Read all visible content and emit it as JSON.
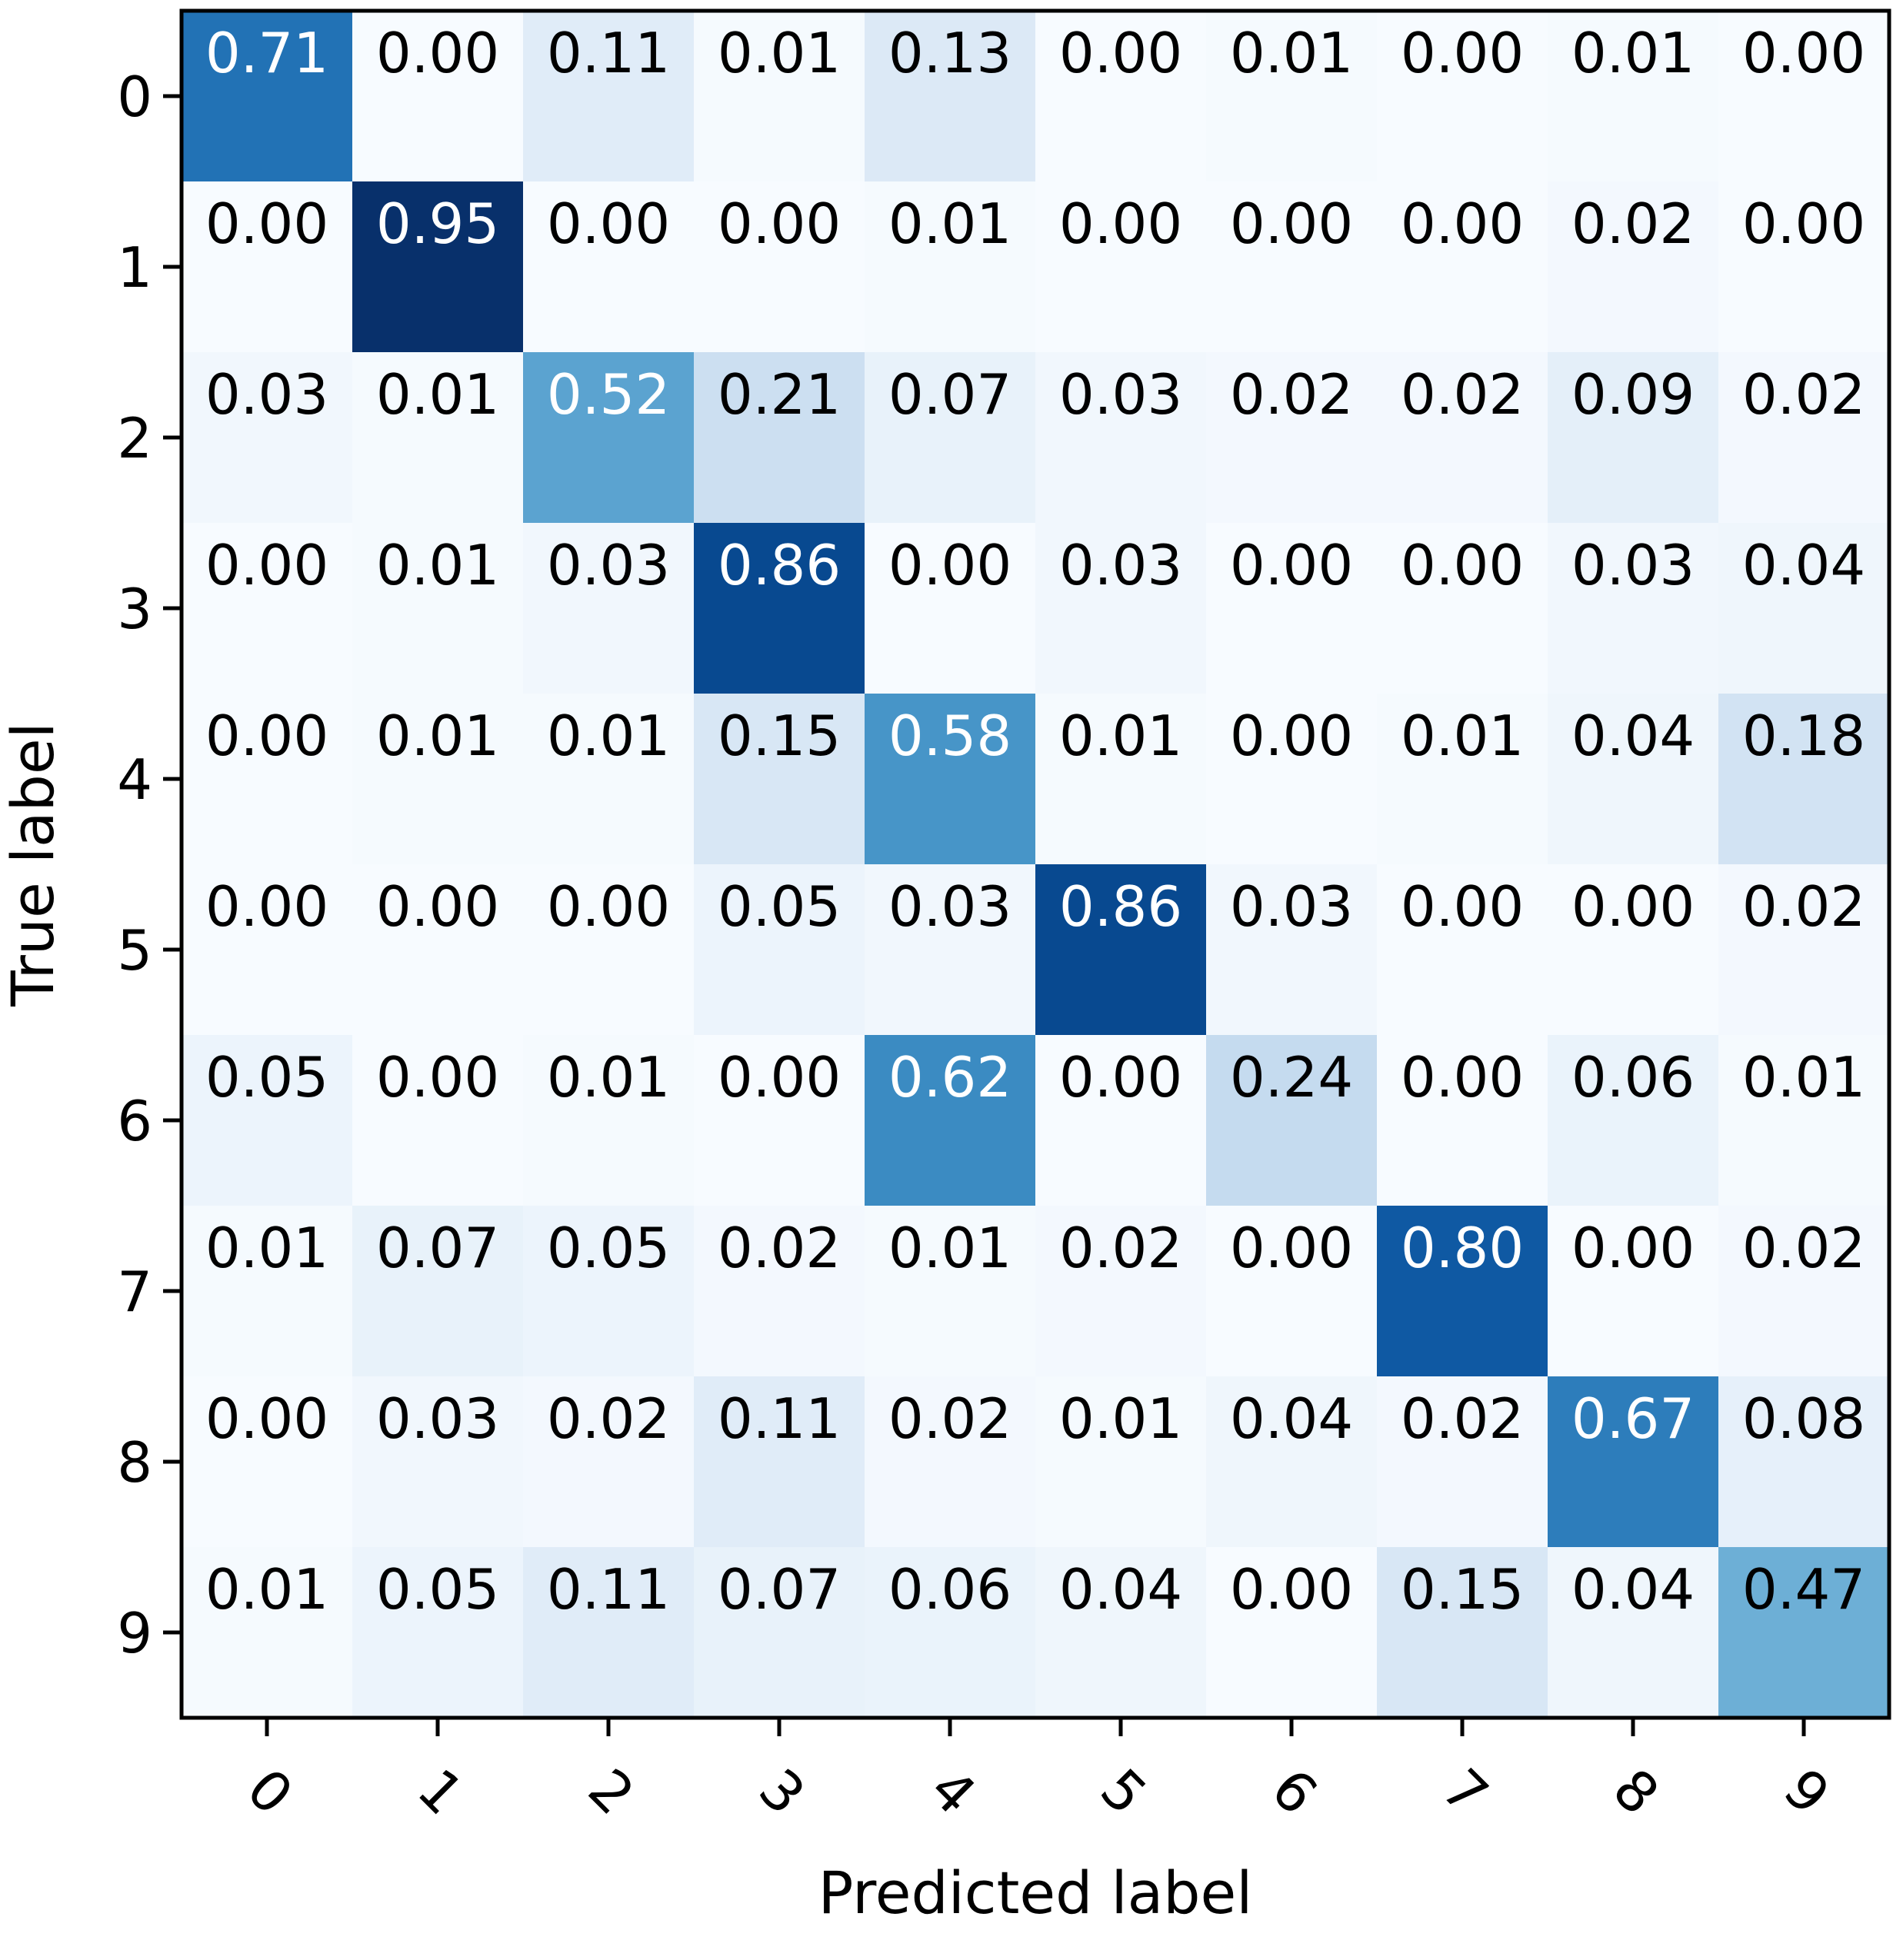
{
  "chart_data": {
    "type": "heatmap",
    "colormap": "Blues",
    "xlabel": "Predicted label",
    "ylabel": "True label",
    "x_tick_labels": [
      "0",
      "1",
      "2",
      "3",
      "4",
      "5",
      "6",
      "7",
      "8",
      "9"
    ],
    "y_tick_labels": [
      "0",
      "1",
      "2",
      "3",
      "4",
      "5",
      "6",
      "7",
      "8",
      "9"
    ],
    "value_range": [
      0,
      1
    ],
    "values": [
      [
        0.71,
        0.0,
        0.11,
        0.01,
        0.13,
        0.0,
        0.01,
        0.0,
        0.01,
        0.0
      ],
      [
        0.0,
        0.95,
        0.0,
        0.0,
        0.01,
        0.0,
        0.0,
        0.0,
        0.02,
        0.0
      ],
      [
        0.03,
        0.01,
        0.52,
        0.21,
        0.07,
        0.03,
        0.02,
        0.02,
        0.09,
        0.02
      ],
      [
        0.0,
        0.01,
        0.03,
        0.86,
        0.0,
        0.03,
        0.0,
        0.0,
        0.03,
        0.04
      ],
      [
        0.0,
        0.01,
        0.01,
        0.15,
        0.58,
        0.01,
        0.0,
        0.01,
        0.04,
        0.18
      ],
      [
        0.0,
        0.0,
        0.0,
        0.05,
        0.03,
        0.86,
        0.03,
        0.0,
        0.0,
        0.02
      ],
      [
        0.05,
        0.0,
        0.01,
        0.0,
        0.62,
        0.0,
        0.24,
        0.0,
        0.06,
        0.01
      ],
      [
        0.01,
        0.07,
        0.05,
        0.02,
        0.01,
        0.02,
        0.0,
        0.8,
        0.0,
        0.02
      ],
      [
        0.0,
        0.03,
        0.02,
        0.11,
        0.02,
        0.01,
        0.04,
        0.02,
        0.67,
        0.08
      ],
      [
        0.01,
        0.05,
        0.11,
        0.07,
        0.06,
        0.04,
        0.0,
        0.15,
        0.04,
        0.47
      ]
    ],
    "cell_labels": [
      [
        "0.71",
        "0.00",
        "0.11",
        "0.01",
        "0.13",
        "0.00",
        "0.01",
        "0.00",
        "0.01",
        "0.00"
      ],
      [
        "0.00",
        "0.95",
        "0.00",
        "0.00",
        "0.01",
        "0.00",
        "0.00",
        "0.00",
        "0.02",
        "0.00"
      ],
      [
        "0.03",
        "0.01",
        "0.52",
        "0.21",
        "0.07",
        "0.03",
        "0.02",
        "0.02",
        "0.09",
        "0.02"
      ],
      [
        "0.00",
        "0.01",
        "0.03",
        "0.86",
        "0.00",
        "0.03",
        "0.00",
        "0.00",
        "0.03",
        "0.04"
      ],
      [
        "0.00",
        "0.01",
        "0.01",
        "0.15",
        "0.58",
        "0.01",
        "0.00",
        "0.01",
        "0.04",
        "0.18"
      ],
      [
        "0.00",
        "0.00",
        "0.00",
        "0.05",
        "0.03",
        "0.86",
        "0.03",
        "0.00",
        "0.00",
        "0.02"
      ],
      [
        "0.05",
        "0.00",
        "0.01",
        "0.00",
        "0.62",
        "0.00",
        "0.24",
        "0.00",
        "0.06",
        "0.01"
      ],
      [
        "0.01",
        "0.07",
        "0.05",
        "0.02",
        "0.01",
        "0.02",
        "0.00",
        "0.80",
        "0.00",
        "0.02"
      ],
      [
        "0.00",
        "0.03",
        "0.02",
        "0.11",
        "0.02",
        "0.01",
        "0.04",
        "0.02",
        "0.67",
        "0.08"
      ],
      [
        "0.01",
        "0.05",
        "0.11",
        "0.07",
        "0.06",
        "0.04",
        "0.00",
        "0.15",
        "0.04",
        "0.47"
      ]
    ],
    "text_color_dark": "#000000",
    "text_color_light": "#ffffff",
    "text_color_threshold": 0.5,
    "x_tick_rotation_deg": 45,
    "grid": false,
    "colorbar": false
  }
}
